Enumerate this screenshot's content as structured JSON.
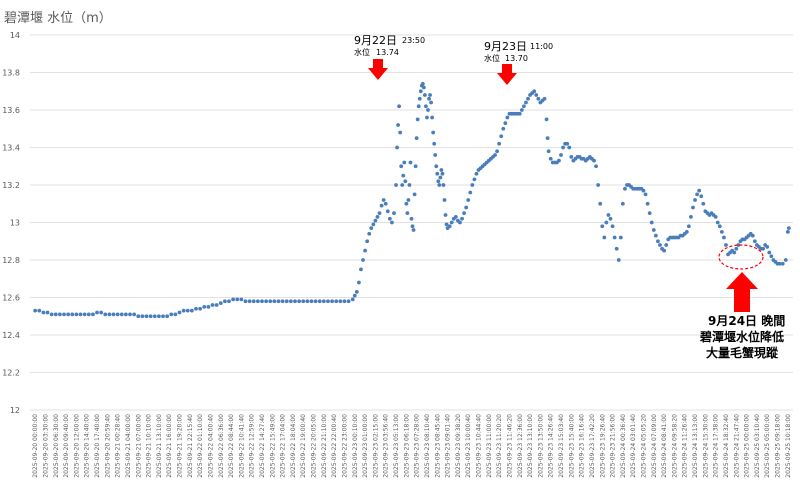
{
  "chart_data": {
    "type": "scatter",
    "title": "碧潭堰 水位（m）",
    "ylim": [
      12,
      14
    ],
    "yticks": [
      "12",
      "12.2",
      "12.4",
      "12.6",
      "12.8",
      "13",
      "13.2",
      "13.4",
      "13.6",
      "13.8",
      "14"
    ],
    "grid": "horizontal",
    "series_color": "#4A7EBB",
    "x_tick_labels": [
      "2025-09-20 00:00:00",
      "2025-09-20 03:30:00",
      "2025-09-20 06:30:00",
      "2025-09-20 09:40:00",
      "2025-09-20 12:00:00",
      "2025-09-20 14:40:00",
      "2025-09-20 17:40:00",
      "2025-09-20 20:59:40",
      "2025-09-21 00:28:40",
      "2025-09-21 04:00:00",
      "2025-09-21 07:00:00",
      "2025-09-21 10:10:00",
      "2025-09-21 13:10:00",
      "2025-09-21 16:00:00",
      "2025-09-21 19:20:00",
      "2025-09-21 22:15:40",
      "2025-09-22 01:10:00",
      "2025-09-22 04:00:40",
      "2025-09-22 06:36:00",
      "2025-09-22 08:44:00",
      "2025-09-22 10:41:40",
      "2025-09-22 12:59:00",
      "2025-09-22 14:27:40",
      "2025-09-22 15:49:00",
      "2025-09-22 17:04:00",
      "2025-09-22 18:04:00",
      "2025-09-22 19:00:40",
      "2025-09-22 20:05:00",
      "2025-09-22 21:10:00",
      "2025-09-22 22:00:40",
      "2025-09-22 23:00:00",
      "2025-09-23 00:10:00",
      "2025-09-23 01:00:00",
      "2025-09-23 02:15:00",
      "2025-09-23 03:56:40",
      "2025-09-23 05:13:00",
      "2025-09-23 06:18:00",
      "2025-09-23 07:28:00",
      "2025-09-23 08:10:40",
      "2025-09-23 08:45:40",
      "2025-09-23 09:01:40",
      "2025-09-23 09:38:20",
      "2025-09-23 10:00:40",
      "2025-09-23 10:44:40",
      "2025-09-23 11:00:00",
      "2025-09-23 11:20:20",
      "2025-09-23 11:46:20",
      "2025-09-23 12:36:00",
      "2025-09-23 13:10:00",
      "2025-09-23 13:50:00",
      "2025-09-23 14:26:40",
      "2025-09-23 15:03:40",
      "2025-09-23 15:40:00",
      "2025-09-23 16:16:40",
      "2025-09-23 17:42:20",
      "2025-09-23 19:26:40",
      "2025-09-23 21:56:00",
      "2025-09-24 00:36:40",
      "2025-09-24 03:01:40",
      "2025-09-24 05:05:20",
      "2025-09-24 07:09:00",
      "2025-09-24 08:41:00",
      "2025-09-24 09:58:20",
      "2025-09-24 11:26:40",
      "2025-09-24 13:13:00",
      "2025-09-24 15:30:00",
      "2025-09-24 17:38:00",
      "2025-09-24 18:32:40",
      "2025-09-24 21:47:40",
      "2025-09-25 00:00:00",
      "2025-09-25 03:10:40",
      "2025-09-25 05:00:00",
      "2025-09-25 09:18:00",
      "2025-09-25 10:18:00"
    ],
    "data_points": [
      [
        0,
        12.53
      ],
      [
        0.4,
        12.53
      ],
      [
        0.8,
        12.52
      ],
      [
        1.2,
        12.52
      ],
      [
        1.6,
        12.51
      ],
      [
        2.0,
        12.51
      ],
      [
        2.4,
        12.51
      ],
      [
        2.8,
        12.51
      ],
      [
        3.2,
        12.51
      ],
      [
        3.6,
        12.51
      ],
      [
        4.0,
        12.51
      ],
      [
        4.4,
        12.51
      ],
      [
        4.8,
        12.51
      ],
      [
        5.2,
        12.51
      ],
      [
        5.6,
        12.51
      ],
      [
        6.0,
        12.52
      ],
      [
        6.4,
        12.52
      ],
      [
        6.8,
        12.51
      ],
      [
        7.2,
        12.51
      ],
      [
        7.6,
        12.51
      ],
      [
        8.0,
        12.51
      ],
      [
        8.4,
        12.51
      ],
      [
        8.8,
        12.51
      ],
      [
        9.2,
        12.51
      ],
      [
        9.6,
        12.51
      ],
      [
        10.0,
        12.5
      ],
      [
        10.4,
        12.5
      ],
      [
        10.8,
        12.5
      ],
      [
        11.2,
        12.5
      ],
      [
        11.6,
        12.5
      ],
      [
        12.0,
        12.5
      ],
      [
        12.4,
        12.5
      ],
      [
        12.8,
        12.5
      ],
      [
        13.2,
        12.51
      ],
      [
        13.6,
        12.51
      ],
      [
        14.0,
        12.52
      ],
      [
        14.4,
        12.53
      ],
      [
        14.8,
        12.53
      ],
      [
        15.2,
        12.53
      ],
      [
        15.6,
        12.54
      ],
      [
        16.0,
        12.54
      ],
      [
        16.4,
        12.55
      ],
      [
        16.8,
        12.55
      ],
      [
        17.2,
        12.56
      ],
      [
        17.6,
        12.56
      ],
      [
        18.0,
        12.57
      ],
      [
        18.4,
        12.58
      ],
      [
        18.8,
        12.58
      ],
      [
        19.2,
        12.59
      ],
      [
        19.6,
        12.59
      ],
      [
        20.0,
        12.59
      ],
      [
        20.4,
        12.58
      ],
      [
        20.8,
        12.58
      ],
      [
        21.2,
        12.58
      ],
      [
        21.6,
        12.58
      ],
      [
        22.0,
        12.58
      ],
      [
        22.4,
        12.58
      ],
      [
        22.8,
        12.58
      ],
      [
        23.2,
        12.58
      ],
      [
        23.6,
        12.58
      ],
      [
        24.0,
        12.58
      ],
      [
        24.4,
        12.58
      ],
      [
        24.8,
        12.58
      ],
      [
        25.2,
        12.58
      ],
      [
        25.6,
        12.58
      ],
      [
        26.0,
        12.58
      ],
      [
        26.4,
        12.58
      ],
      [
        26.8,
        12.58
      ],
      [
        27.2,
        12.58
      ],
      [
        27.6,
        12.58
      ],
      [
        28.0,
        12.58
      ],
      [
        28.4,
        12.58
      ],
      [
        28.8,
        12.58
      ],
      [
        29.2,
        12.58
      ],
      [
        29.6,
        12.58
      ],
      [
        30.0,
        12.58
      ],
      [
        30.4,
        12.58
      ],
      [
        30.8,
        12.59
      ],
      [
        31.0,
        12.61
      ],
      [
        31.2,
        12.63
      ],
      [
        31.4,
        12.68
      ],
      [
        31.6,
        12.75
      ],
      [
        31.8,
        12.8
      ],
      [
        32.0,
        12.85
      ],
      [
        32.2,
        12.9
      ],
      [
        32.4,
        12.94
      ],
      [
        32.6,
        12.97
      ],
      [
        32.8,
        12.99
      ],
      [
        33.0,
        13.01
      ],
      [
        33.2,
        13.03
      ],
      [
        33.4,
        13.05
      ],
      [
        33.6,
        13.09
      ],
      [
        33.8,
        13.12
      ],
      [
        34.0,
        13.1
      ],
      [
        34.2,
        13.06
      ],
      [
        34.4,
        13.02
      ],
      [
        34.6,
        13.0
      ],
      [
        34.8,
        13.05
      ],
      [
        35.0,
        13.2
      ],
      [
        35.1,
        13.4
      ],
      [
        35.2,
        13.52
      ],
      [
        35.3,
        13.62
      ],
      [
        35.4,
        13.48
      ],
      [
        35.5,
        13.3
      ],
      [
        35.6,
        13.2
      ],
      [
        35.7,
        13.25
      ],
      [
        35.8,
        13.32
      ],
      [
        35.9,
        13.22
      ],
      [
        36.0,
        13.1
      ],
      [
        36.1,
        13.05
      ],
      [
        36.2,
        13.12
      ],
      [
        36.3,
        13.2
      ],
      [
        36.4,
        13.32
      ],
      [
        36.5,
        13.02
      ],
      [
        36.6,
        12.98
      ],
      [
        36.7,
        12.96
      ],
      [
        36.8,
        13.15
      ],
      [
        36.9,
        13.3
      ],
      [
        37.0,
        13.45
      ],
      [
        37.1,
        13.55
      ],
      [
        37.2,
        13.62
      ],
      [
        37.3,
        13.66
      ],
      [
        37.4,
        13.7
      ],
      [
        37.5,
        13.73
      ],
      [
        37.6,
        13.74
      ],
      [
        37.7,
        13.72
      ],
      [
        37.8,
        13.68
      ],
      [
        37.9,
        13.62
      ],
      [
        38.0,
        13.56
      ],
      [
        38.1,
        13.6
      ],
      [
        38.2,
        13.66
      ],
      [
        38.3,
        13.68
      ],
      [
        38.4,
        13.64
      ],
      [
        38.5,
        13.56
      ],
      [
        38.6,
        13.48
      ],
      [
        38.7,
        13.42
      ],
      [
        38.8,
        13.36
      ],
      [
        38.9,
        13.3
      ],
      [
        39.0,
        13.26
      ],
      [
        39.1,
        13.22
      ],
      [
        39.2,
        13.2
      ],
      [
        39.3,
        13.24
      ],
      [
        39.4,
        13.28
      ],
      [
        39.5,
        13.26
      ],
      [
        39.6,
        13.2
      ],
      [
        39.7,
        13.12
      ],
      [
        39.8,
        13.04
      ],
      [
        39.9,
        12.99
      ],
      [
        40.0,
        12.97
      ],
      [
        40.2,
        12.98
      ],
      [
        40.4,
        13.0
      ],
      [
        40.6,
        13.02
      ],
      [
        40.8,
        13.03
      ],
      [
        41.0,
        13.01
      ],
      [
        41.2,
        13.0
      ],
      [
        41.4,
        13.02
      ],
      [
        41.6,
        13.05
      ],
      [
        41.8,
        13.08
      ],
      [
        42.0,
        13.12
      ],
      [
        42.2,
        13.16
      ],
      [
        42.4,
        13.2
      ],
      [
        42.6,
        13.23
      ],
      [
        42.8,
        13.26
      ],
      [
        43.0,
        13.28
      ],
      [
        43.2,
        13.29
      ],
      [
        43.4,
        13.3
      ],
      [
        43.6,
        13.31
      ],
      [
        43.8,
        13.32
      ],
      [
        44.0,
        13.33
      ],
      [
        44.2,
        13.34
      ],
      [
        44.4,
        13.35
      ],
      [
        44.6,
        13.36
      ],
      [
        44.8,
        13.38
      ],
      [
        45.0,
        13.42
      ],
      [
        45.2,
        13.46
      ],
      [
        45.4,
        13.5
      ],
      [
        45.6,
        13.53
      ],
      [
        45.8,
        13.56
      ],
      [
        46.0,
        13.58
      ],
      [
        46.2,
        13.58
      ],
      [
        46.4,
        13.58
      ],
      [
        46.6,
        13.58
      ],
      [
        46.8,
        13.58
      ],
      [
        47.0,
        13.58
      ],
      [
        47.2,
        13.6
      ],
      [
        47.4,
        13.62
      ],
      [
        47.6,
        13.64
      ],
      [
        47.8,
        13.66
      ],
      [
        48.0,
        13.68
      ],
      [
        48.2,
        13.69
      ],
      [
        48.4,
        13.7
      ],
      [
        48.6,
        13.68
      ],
      [
        48.8,
        13.66
      ],
      [
        49.0,
        13.64
      ],
      [
        49.2,
        13.65
      ],
      [
        49.4,
        13.66
      ],
      [
        49.6,
        13.55
      ],
      [
        49.7,
        13.45
      ],
      [
        49.8,
        13.38
      ],
      [
        50.0,
        13.34
      ],
      [
        50.2,
        13.32
      ],
      [
        50.4,
        13.32
      ],
      [
        50.6,
        13.32
      ],
      [
        50.8,
        13.33
      ],
      [
        51.0,
        13.36
      ],
      [
        51.2,
        13.4
      ],
      [
        51.4,
        13.42
      ],
      [
        51.6,
        13.42
      ],
      [
        51.8,
        13.4
      ],
      [
        52.0,
        13.35
      ],
      [
        52.2,
        13.33
      ],
      [
        52.4,
        13.34
      ],
      [
        52.6,
        13.35
      ],
      [
        52.8,
        13.35
      ],
      [
        53.0,
        13.34
      ],
      [
        53.2,
        13.34
      ],
      [
        53.4,
        13.33
      ],
      [
        53.6,
        13.34
      ],
      [
        53.8,
        13.35
      ],
      [
        54.0,
        13.34
      ],
      [
        54.2,
        13.33
      ],
      [
        54.4,
        13.3
      ],
      [
        54.6,
        13.2
      ],
      [
        54.8,
        13.1
      ],
      [
        55.0,
        12.98
      ],
      [
        55.2,
        12.92
      ],
      [
        55.4,
        13.0
      ],
      [
        55.6,
        13.04
      ],
      [
        55.8,
        13.02
      ],
      [
        56.0,
        12.98
      ],
      [
        56.2,
        12.92
      ],
      [
        56.4,
        12.86
      ],
      [
        56.6,
        12.8
      ],
      [
        56.8,
        12.92
      ],
      [
        57.0,
        13.1
      ],
      [
        57.2,
        13.18
      ],
      [
        57.4,
        13.2
      ],
      [
        57.6,
        13.2
      ],
      [
        57.8,
        13.19
      ],
      [
        58.0,
        13.18
      ],
      [
        58.2,
        13.18
      ],
      [
        58.4,
        13.18
      ],
      [
        58.6,
        13.18
      ],
      [
        58.8,
        13.18
      ],
      [
        59.0,
        13.17
      ],
      [
        59.2,
        13.15
      ],
      [
        59.4,
        13.1
      ],
      [
        59.6,
        13.05
      ],
      [
        59.8,
        13.0
      ],
      [
        60.0,
        12.96
      ],
      [
        60.2,
        12.93
      ],
      [
        60.4,
        12.9
      ],
      [
        60.6,
        12.88
      ],
      [
        60.8,
        12.86
      ],
      [
        61.0,
        12.85
      ],
      [
        61.2,
        12.88
      ],
      [
        61.4,
        12.91
      ],
      [
        61.6,
        12.92
      ],
      [
        61.8,
        12.92
      ],
      [
        62.0,
        12.92
      ],
      [
        62.2,
        12.92
      ],
      [
        62.4,
        12.92
      ],
      [
        62.6,
        12.93
      ],
      [
        62.8,
        12.93
      ],
      [
        63.0,
        12.94
      ],
      [
        63.2,
        12.95
      ],
      [
        63.4,
        12.98
      ],
      [
        63.6,
        13.03
      ],
      [
        63.8,
        13.08
      ],
      [
        64.0,
        13.12
      ],
      [
        64.2,
        13.15
      ],
      [
        64.4,
        13.17
      ],
      [
        64.6,
        13.14
      ],
      [
        64.8,
        13.1
      ],
      [
        65.0,
        13.06
      ],
      [
        65.2,
        13.05
      ],
      [
        65.4,
        13.04
      ],
      [
        65.6,
        13.05
      ],
      [
        65.8,
        13.04
      ],
      [
        66.0,
        13.03
      ],
      [
        66.2,
        13.0
      ],
      [
        66.4,
        12.98
      ],
      [
        66.6,
        12.95
      ],
      [
        66.8,
        12.92
      ],
      [
        67.0,
        12.88
      ],
      [
        67.2,
        12.83
      ],
      [
        67.4,
        12.84
      ],
      [
        67.6,
        12.85
      ],
      [
        67.8,
        12.84
      ],
      [
        68.0,
        12.86
      ],
      [
        68.2,
        12.88
      ],
      [
        68.4,
        12.9
      ],
      [
        68.6,
        12.91
      ],
      [
        68.8,
        12.91
      ],
      [
        69.0,
        12.92
      ],
      [
        69.2,
        12.93
      ],
      [
        69.4,
        12.94
      ],
      [
        69.6,
        12.93
      ],
      [
        69.8,
        12.9
      ],
      [
        70.0,
        12.88
      ],
      [
        70.2,
        12.87
      ],
      [
        70.4,
        12.86
      ],
      [
        70.6,
        12.86
      ],
      [
        70.8,
        12.88
      ],
      [
        71.0,
        12.87
      ],
      [
        71.2,
        12.84
      ],
      [
        71.4,
        12.82
      ],
      [
        71.6,
        12.8
      ],
      [
        71.8,
        12.79
      ],
      [
        72.0,
        12.78
      ],
      [
        72.2,
        12.78
      ],
      [
        72.5,
        12.78
      ],
      [
        72.8,
        12.8
      ],
      [
        73.0,
        12.95
      ],
      [
        73.1,
        12.97
      ]
    ],
    "annotations": [
      {
        "date": "9月22日",
        "time": "23:50",
        "label": "水位",
        "value": "13.74",
        "x_index": 37.6,
        "y": 13.74
      },
      {
        "date": "9月23日",
        "time": "11:00",
        "label": "水位",
        "value": "13.70",
        "x_index": 48.4,
        "y": 13.7
      }
    ],
    "callout": {
      "lines": [
        "9月24日  晚間",
        "碧潭堰水位降低",
        "大量毛蟹現蹤"
      ],
      "arrow_color": "#FF0000"
    }
  }
}
